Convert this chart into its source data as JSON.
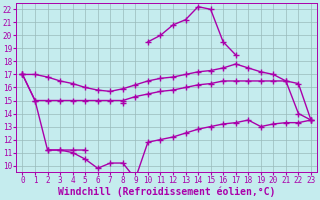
{
  "xlabel": "Windchill (Refroidissement éolien,°C)",
  "xlim": [
    -0.5,
    23.5
  ],
  "ylim": [
    9.5,
    22.5
  ],
  "xticks": [
    0,
    1,
    2,
    3,
    4,
    5,
    6,
    7,
    8,
    9,
    10,
    11,
    12,
    13,
    14,
    15,
    16,
    17,
    18,
    19,
    20,
    21,
    22,
    23
  ],
  "yticks": [
    10,
    11,
    12,
    13,
    14,
    15,
    16,
    17,
    18,
    19,
    20,
    21,
    22
  ],
  "bg_color": "#c5ecee",
  "line_color": "#aa00aa",
  "grid_color": "#99bbbb",
  "line1_x": [
    0,
    1,
    2,
    3,
    4,
    5,
    6,
    7,
    8,
    9,
    10,
    11,
    12,
    13,
    14,
    15,
    16,
    17,
    18,
    19,
    20,
    21,
    22,
    23
  ],
  "line1_y": [
    17.0,
    17.0,
    16.8,
    16.5,
    16.3,
    16.0,
    15.8,
    15.7,
    15.9,
    16.2,
    16.5,
    16.7,
    16.8,
    17.0,
    17.2,
    17.3,
    17.5,
    17.8,
    17.5,
    17.2,
    17.0,
    16.5,
    16.3,
    13.5
  ],
  "line2_x": [
    0,
    1,
    2,
    3,
    4,
    5,
    6,
    7,
    8,
    9,
    10,
    11,
    12,
    13,
    14,
    15,
    16,
    17,
    18,
    19,
    20,
    21,
    22,
    23
  ],
  "line2_y": [
    17.0,
    15.0,
    15.0,
    15.0,
    15.0,
    15.0,
    15.0,
    15.0,
    15.0,
    15.3,
    15.5,
    15.7,
    15.8,
    16.0,
    16.2,
    16.3,
    16.5,
    16.5,
    16.5,
    16.5,
    16.5,
    16.5,
    14.0,
    13.5
  ],
  "line3_x": [
    0,
    1,
    2,
    3,
    4,
    5,
    6,
    7,
    8,
    9,
    10,
    11,
    12,
    13,
    14,
    15,
    16,
    17,
    18,
    19,
    20,
    21,
    22,
    23
  ],
  "line3_y": [
    17.0,
    15.0,
    11.2,
    11.2,
    11.2,
    11.2,
    null,
    null,
    14.8,
    null,
    19.5,
    20.0,
    20.8,
    21.2,
    22.2,
    22.0,
    19.5,
    18.5,
    null,
    null,
    null,
    null,
    null,
    null
  ],
  "line4_x": [
    0,
    1,
    2,
    3,
    4,
    5,
    6,
    7,
    8,
    9,
    10,
    11,
    12,
    13,
    14,
    15,
    16,
    17,
    18,
    19,
    20,
    21,
    22,
    23
  ],
  "line4_y": [
    null,
    null,
    11.2,
    11.2,
    11.0,
    10.5,
    9.8,
    10.2,
    10.2,
    9.0,
    11.8,
    12.0,
    12.2,
    12.5,
    12.8,
    13.0,
    13.2,
    13.3,
    13.5,
    13.0,
    13.2,
    13.3,
    13.3,
    13.5
  ],
  "marker": "+",
  "markersize": 4,
  "linewidth": 1.0,
  "tick_fontsize": 5.5,
  "xlabel_fontsize": 7.0
}
